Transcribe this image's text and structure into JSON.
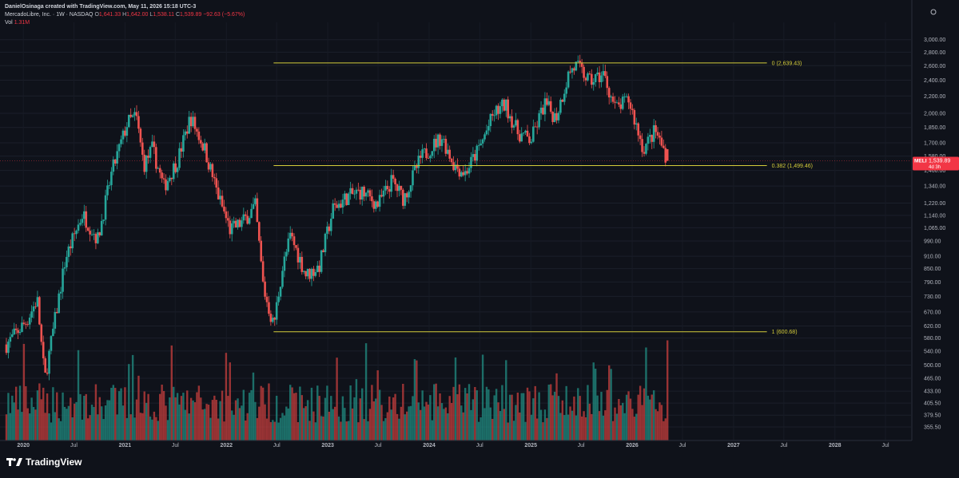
{
  "header": {
    "byline": "DanielOsinaga created with TradingView.com, May 11, 2026 15:18 UTC-3",
    "symbol_line": "MercadoLibre, Inc. · 1W · NASDAQ",
    "o_label": "O",
    "o_value": "1,641.33",
    "h_label": "H",
    "h_value": "1,642.00",
    "l_label": "L",
    "l_value": "1,538.11",
    "c_label": "C",
    "c_value": "1,539.89",
    "change": "−92.63 (−5.67%)",
    "vol_label": "Vol",
    "vol_value": "1.31M"
  },
  "branding": {
    "name": "TradingView"
  },
  "colors": {
    "background": "#0f121a",
    "up": "#26a69a",
    "down": "#ef5350",
    "vol_up": "#1f7f77",
    "vol_down": "#b23a3a",
    "fib": "#d4cc3a",
    "price_tag": "#f23645"
  },
  "price_tag": {
    "ticker": "MELI",
    "price": "1,539.89",
    "countdown": "4d 3h"
  },
  "chart_data": {
    "type": "candlestick",
    "symbol": "MELI",
    "interval": "1W",
    "exchange": "NASDAQ",
    "ylim": [
      330,
      3300
    ],
    "scale": "log",
    "y_ticks": [
      "3,000.00",
      "2,800.00",
      "2,600.00",
      "2,400.00",
      "2,200.00",
      "2,000.00",
      "1,850.00",
      "1,700.00",
      "1,580.00",
      "1,460.00",
      "1,340.00",
      "1,220.00",
      "1,140.00",
      "1,065.00",
      "990.00",
      "910.00",
      "850.00",
      "790.00",
      "730.00",
      "670.00",
      "620.00",
      "580.00",
      "540.00",
      "500.00",
      "465.00",
      "433.00",
      "405.50",
      "379.50",
      "355.50"
    ],
    "x_ticks": [
      "2020",
      "Jul",
      "2021",
      "Jul",
      "2022",
      "Jul",
      "2023",
      "Jul",
      "2024",
      "Jul",
      "2025",
      "Jul",
      "2026",
      "Jul",
      "2027",
      "Jul",
      "2028",
      "Jul"
    ],
    "fib_levels": [
      {
        "label": "0 (2,639.43)",
        "value": 2639.43
      },
      {
        "label": "0.382 (1,499.46)",
        "value": 1499.46
      },
      {
        "label": "1 (600.68)",
        "value": 600.68
      }
    ],
    "close_path": [
      {
        "date": "2019-11-01",
        "close": 560
      },
      {
        "date": "2020-01-15",
        "close": 640
      },
      {
        "date": "2020-02-20",
        "close": 720
      },
      {
        "date": "2020-03-18",
        "close": 460
      },
      {
        "date": "2020-04-20",
        "close": 620
      },
      {
        "date": "2020-06-01",
        "close": 900
      },
      {
        "date": "2020-08-01",
        "close": 1150
      },
      {
        "date": "2020-09-25",
        "close": 1000
      },
      {
        "date": "2020-11-15",
        "close": 1450
      },
      {
        "date": "2021-01-10",
        "close": 1900
      },
      {
        "date": "2021-02-10",
        "close": 1970
      },
      {
        "date": "2021-03-10",
        "close": 1500
      },
      {
        "date": "2021-04-10",
        "close": 1650
      },
      {
        "date": "2021-05-20",
        "close": 1330
      },
      {
        "date": "2021-07-10",
        "close": 1550
      },
      {
        "date": "2021-08-25",
        "close": 1960
      },
      {
        "date": "2021-10-15",
        "close": 1640
      },
      {
        "date": "2021-12-01",
        "close": 1280
      },
      {
        "date": "2022-01-15",
        "close": 1050
      },
      {
        "date": "2022-03-01",
        "close": 1100
      },
      {
        "date": "2022-04-15",
        "close": 1200
      },
      {
        "date": "2022-05-15",
        "close": 760
      },
      {
        "date": "2022-06-20",
        "close": 620
      },
      {
        "date": "2022-07-20",
        "close": 840
      },
      {
        "date": "2022-08-20",
        "close": 1020
      },
      {
        "date": "2022-10-15",
        "close": 820
      },
      {
        "date": "2022-12-01",
        "close": 860
      },
      {
        "date": "2023-01-20",
        "close": 1180
      },
      {
        "date": "2023-03-10",
        "close": 1260
      },
      {
        "date": "2023-05-01",
        "close": 1300
      },
      {
        "date": "2023-07-01",
        "close": 1210
      },
      {
        "date": "2023-08-20",
        "close": 1380
      },
      {
        "date": "2023-10-01",
        "close": 1250
      },
      {
        "date": "2023-12-01",
        "close": 1560
      },
      {
        "date": "2024-02-15",
        "close": 1760
      },
      {
        "date": "2024-04-01",
        "close": 1500
      },
      {
        "date": "2024-05-10",
        "close": 1440
      },
      {
        "date": "2024-07-01",
        "close": 1660
      },
      {
        "date": "2024-08-20",
        "close": 1990
      },
      {
        "date": "2024-10-01",
        "close": 2100
      },
      {
        "date": "2024-11-15",
        "close": 1800
      },
      {
        "date": "2025-01-01",
        "close": 1720
      },
      {
        "date": "2025-02-20",
        "close": 2110
      },
      {
        "date": "2025-04-01",
        "close": 1950
      },
      {
        "date": "2025-05-20",
        "close": 2520
      },
      {
        "date": "2025-06-15",
        "close": 2600
      },
      {
        "date": "2025-08-01",
        "close": 2380
      },
      {
        "date": "2025-09-20",
        "close": 2480
      },
      {
        "date": "2025-11-01",
        "close": 2050
      },
      {
        "date": "2025-12-20",
        "close": 2150
      },
      {
        "date": "2026-02-10",
        "close": 1640
      },
      {
        "date": "2026-03-25",
        "close": 1820
      },
      {
        "date": "2026-05-11",
        "close": 1539.89
      }
    ]
  }
}
